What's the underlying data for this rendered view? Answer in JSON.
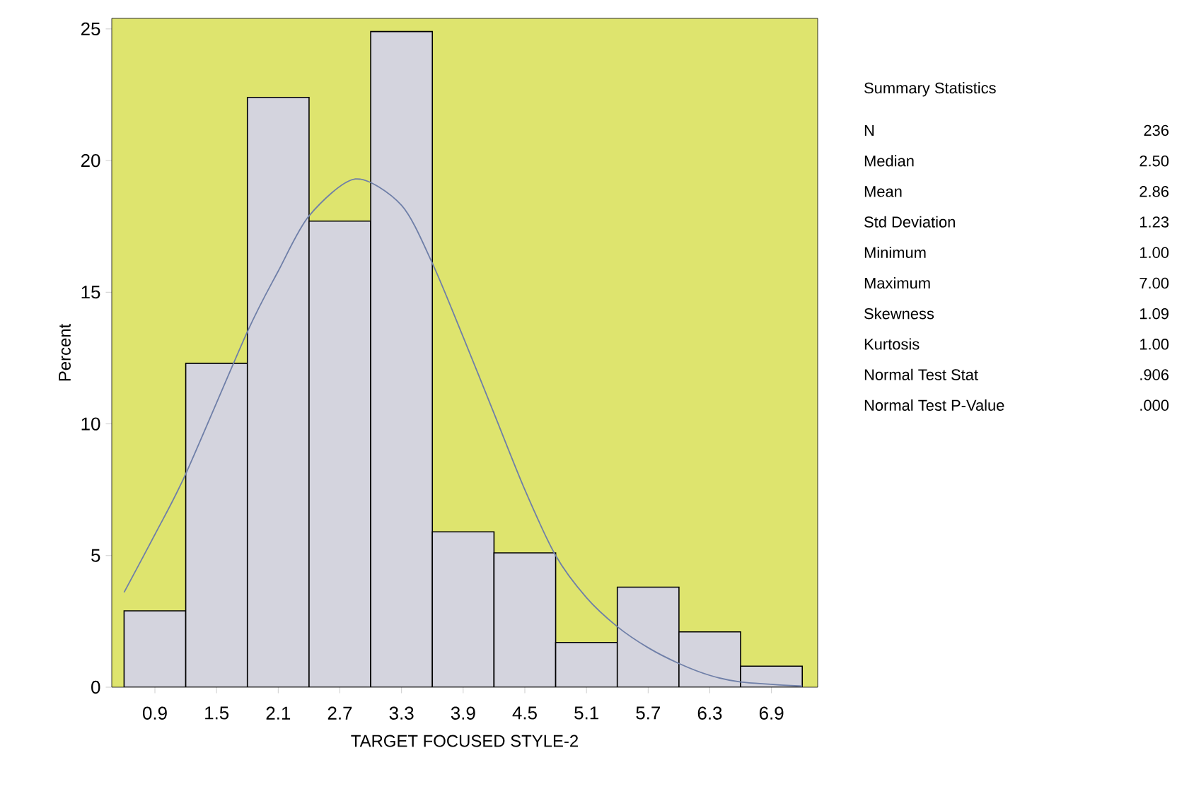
{
  "chart_data": {
    "type": "histogram",
    "xlabel": "TARGET FOCUSED STYLE-2",
    "ylabel": "Percent",
    "xlim": [
      0.48,
      7.35
    ],
    "ylim": [
      0,
      25.4
    ],
    "xticks": [
      0.9,
      1.5,
      2.1,
      2.7,
      3.3,
      3.9,
      4.5,
      5.1,
      5.7,
      6.3,
      6.9
    ],
    "yticks": [
      0,
      5,
      10,
      15,
      20,
      25
    ],
    "grid": false,
    "series": [
      {
        "type": "histogram",
        "color": "#d4d4de",
        "bins": [
          0.6,
          1.2,
          1.8,
          2.4,
          3.0,
          3.6,
          4.2,
          4.8,
          5.4,
          6.0,
          6.6,
          7.2
        ],
        "values": [
          2.9,
          12.3,
          22.4,
          17.7,
          24.9,
          5.9,
          5.1,
          1.7,
          3.8,
          2.1,
          0.8
        ]
      },
      {
        "type": "line",
        "color": "#6f7fa8",
        "x": [
          0.6,
          0.9,
          1.2,
          1.8,
          2.1,
          2.4,
          2.85,
          3.3,
          3.6,
          3.9,
          4.2,
          4.5,
          4.8,
          5.1,
          5.4,
          5.7,
          6.0,
          6.3,
          6.6,
          7.2
        ],
        "values": [
          3.6,
          5.8,
          8.1,
          13.5,
          15.8,
          17.9,
          19.3,
          18.3,
          16.1,
          13.3,
          10.4,
          7.5,
          5.0,
          3.4,
          2.3,
          1.5,
          0.9,
          0.45,
          0.2,
          0.04
        ]
      }
    ],
    "annotations": [
      "Summary Statistics",
      "N",
      "236",
      "Median",
      "2.50",
      "Mean",
      "2.86",
      "Std Deviation",
      "1.23",
      "Minimum",
      "1.00",
      "Maximum",
      "7.00",
      "Skewness",
      "1.09",
      "Kurtosis",
      "1.00",
      "Normal Test Stat",
      ".906",
      "Normal Test P-Value",
      ".000"
    ]
  }
}
